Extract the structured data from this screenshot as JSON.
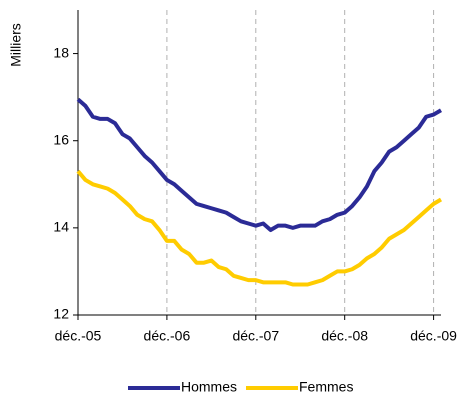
{
  "chart_data": {
    "type": "line",
    "y_label": "Milliers",
    "categories": [
      "déc.-05",
      null,
      null,
      null,
      null,
      null,
      null,
      null,
      null,
      null,
      null,
      null,
      "déc.-06",
      null,
      null,
      null,
      null,
      null,
      null,
      null,
      null,
      null,
      null,
      null,
      "déc.-07",
      null,
      null,
      null,
      null,
      null,
      null,
      null,
      null,
      null,
      null,
      null,
      "déc.-08",
      null,
      null,
      null,
      null,
      null,
      null,
      null,
      null,
      null,
      null,
      null,
      "déc.-09",
      null
    ],
    "series": [
      {
        "name": "Hommes",
        "color": "#2b2b96",
        "values": [
          16.95,
          16.8,
          16.55,
          16.5,
          16.5,
          16.4,
          16.15,
          16.05,
          15.85,
          15.65,
          15.5,
          15.3,
          15.1,
          15.0,
          14.85,
          14.7,
          14.55,
          14.5,
          14.45,
          14.4,
          14.35,
          14.25,
          14.15,
          14.1,
          14.05,
          14.1,
          13.95,
          14.05,
          14.05,
          14.0,
          14.05,
          14.05,
          14.05,
          14.15,
          14.2,
          14.3,
          14.35,
          14.5,
          14.7,
          14.95,
          15.3,
          15.5,
          15.75,
          15.85,
          16.0,
          16.15,
          16.3,
          16.55,
          16.6,
          16.7
        ]
      },
      {
        "name": "Femmes",
        "color": "#ffcc00",
        "values": [
          15.3,
          15.1,
          15.0,
          14.95,
          14.9,
          14.8,
          14.65,
          14.5,
          14.3,
          14.2,
          14.15,
          13.95,
          13.7,
          13.7,
          13.5,
          13.4,
          13.2,
          13.2,
          13.25,
          13.1,
          13.05,
          12.9,
          12.85,
          12.8,
          12.8,
          12.75,
          12.75,
          12.75,
          12.75,
          12.7,
          12.7,
          12.7,
          12.75,
          12.8,
          12.9,
          13.0,
          13.0,
          13.05,
          13.15,
          13.3,
          13.4,
          13.55,
          13.75,
          13.85,
          13.95,
          14.1,
          14.25,
          14.4,
          14.55,
          14.65
        ]
      }
    ],
    "ylim": [
      12,
      19
    ],
    "yticks": [
      12,
      14,
      16,
      18
    ],
    "grid": true,
    "legend": "bottom"
  }
}
